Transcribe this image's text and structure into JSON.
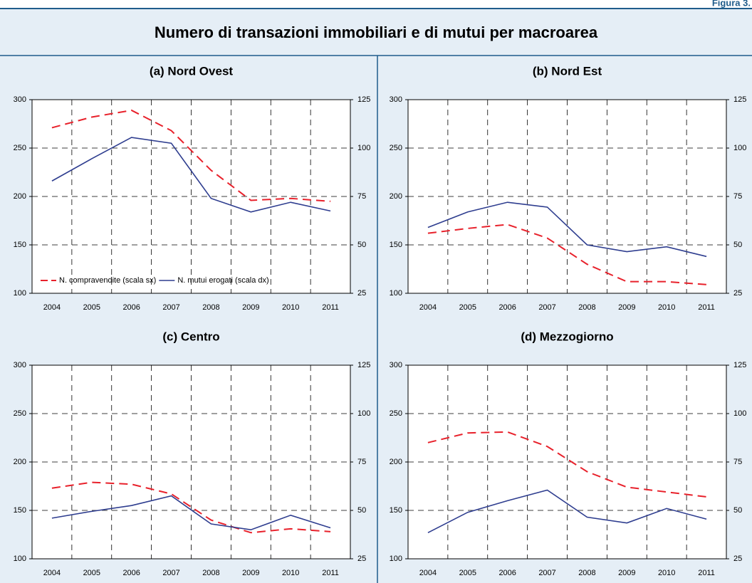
{
  "figure_label": "Figura 3.",
  "title": "Numero di transazioni immobiliari e di mutui per macroarea",
  "chart_data": [
    {
      "type": "line",
      "title": "(a) Nord Ovest",
      "categories": [
        "2004",
        "2005",
        "2006",
        "2007",
        "2008",
        "2009",
        "2010",
        "2011"
      ],
      "series": [
        {
          "name": "N. compravendite (scala sx)",
          "color": "#e8212b",
          "dash": true,
          "values": [
            271,
            282,
            289,
            268,
            227,
            196,
            198,
            195
          ]
        },
        {
          "name": "N. mutui erogati (scala dx)",
          "color": "#2e3d8f",
          "axis": "y2",
          "values": [
            83,
            94.5,
            105.5,
            102.5,
            74,
            67,
            72,
            67.5
          ]
        }
      ],
      "ylim": [
        100,
        300
      ],
      "yticks": [
        100,
        150,
        200,
        250,
        300
      ],
      "y2lim": [
        25,
        125
      ],
      "y2ticks": [
        25,
        50,
        75,
        100,
        125
      ],
      "grid": true,
      "legend": "lower center"
    },
    {
      "type": "line",
      "title": "(b) Nord Est",
      "categories": [
        "2004",
        "2005",
        "2006",
        "2007",
        "2008",
        "2009",
        "2010",
        "2011"
      ],
      "series": [
        {
          "color": "#e8212b",
          "dash": true,
          "values": [
            162,
            167,
            171,
            157,
            130,
            112,
            112,
            109
          ]
        },
        {
          "color": "#2e3d8f",
          "axis": "y2",
          "values": [
            59,
            67,
            72,
            69.5,
            50,
            46.5,
            49,
            44
          ]
        }
      ],
      "ylim": [
        100,
        300
      ],
      "yticks": [
        100,
        150,
        200,
        250,
        300
      ],
      "y2lim": [
        25,
        125
      ],
      "y2ticks": [
        25,
        50,
        75,
        100,
        125
      ],
      "grid": true
    },
    {
      "type": "line",
      "title": "(c) Centro",
      "categories": [
        "2004",
        "2005",
        "2006",
        "2007",
        "2008",
        "2009",
        "2010",
        "2011"
      ],
      "series": [
        {
          "color": "#e8212b",
          "dash": true,
          "values": [
            173,
            179,
            177,
            167,
            140,
            127,
            131,
            128
          ]
        },
        {
          "color": "#2e3d8f",
          "axis": "y2",
          "values": [
            46,
            49.5,
            52.5,
            57.5,
            43,
            40,
            47.5,
            41
          ]
        }
      ],
      "ylim": [
        100,
        300
      ],
      "yticks": [
        100,
        150,
        200,
        250,
        300
      ],
      "y2lim": [
        25,
        125
      ],
      "y2ticks": [
        25,
        50,
        75,
        100,
        125
      ],
      "grid": true
    },
    {
      "type": "line",
      "title": "(d) Mezzogiorno",
      "categories": [
        "2004",
        "2005",
        "2006",
        "2007",
        "2008",
        "2009",
        "2010",
        "2011"
      ],
      "series": [
        {
          "color": "#e8212b",
          "dash": true,
          "values": [
            220,
            230,
            231,
            216,
            190,
            174,
            169,
            164
          ]
        },
        {
          "color": "#2e3d8f",
          "axis": "y2",
          "values": [
            38.5,
            49,
            55,
            60.5,
            46.5,
            43.5,
            51,
            45.5
          ]
        }
      ],
      "ylim": [
        100,
        300
      ],
      "yticks": [
        100,
        150,
        200,
        250,
        300
      ],
      "y2lim": [
        25,
        125
      ],
      "y2ticks": [
        25,
        50,
        75,
        100,
        125
      ],
      "grid": true
    }
  ]
}
